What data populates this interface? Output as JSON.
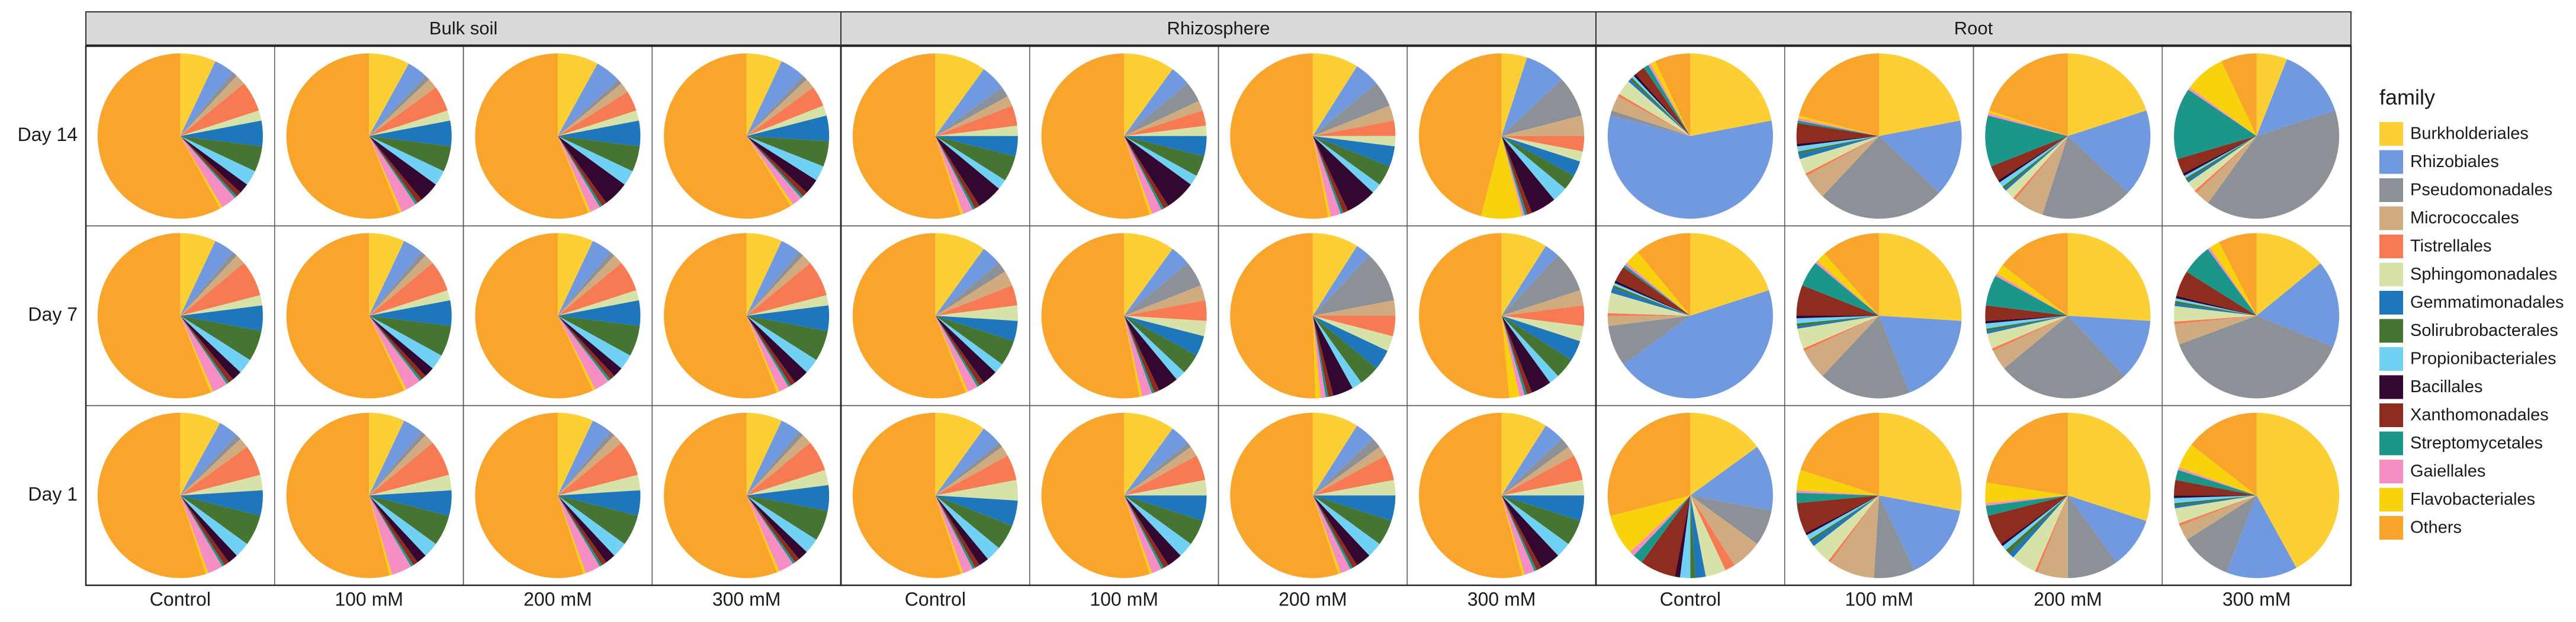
{
  "chart_data": {
    "type": "pie",
    "column_groups": [
      "Bulk soil",
      "Rhizosphere",
      "Root"
    ],
    "columns": [
      "Control",
      "100 mM",
      "200 mM",
      "300 mM"
    ],
    "rows": [
      "Day 14",
      "Day 7",
      "Day 1"
    ],
    "legend_title": "family",
    "families": [
      {
        "name": "Burkholderiales",
        "color": "#fcd034"
      },
      {
        "name": "Rhizobiales",
        "color": "#7199e0"
      },
      {
        "name": "Pseudomonadales",
        "color": "#8b9196"
      },
      {
        "name": "Micrococcales",
        "color": "#d1ab80"
      },
      {
        "name": "Tistrellales",
        "color": "#f87a52"
      },
      {
        "name": "Sphingomonadales",
        "color": "#d7e2a9"
      },
      {
        "name": "Gemmatimonadales",
        "color": "#1f77bb"
      },
      {
        "name": "Solirubrobacterales",
        "color": "#467533"
      },
      {
        "name": "Propionibacteriales",
        "color": "#70d1f5"
      },
      {
        "name": "Bacillales",
        "color": "#33072f"
      },
      {
        "name": "Xanthomonadales",
        "color": "#8e2d1f"
      },
      {
        "name": "Streptomycetales",
        "color": "#1b9688"
      },
      {
        "name": "Gaiellales",
        "color": "#f68ec4"
      },
      {
        "name": "Flavobacteriales",
        "color": "#f7d20d"
      },
      {
        "name": "Others",
        "color": "#f9a52b"
      }
    ],
    "values": [
      [
        [
          [
            7,
            4,
            1,
            2,
            6,
            2,
            5,
            5,
            3,
            2,
            1,
            0.5,
            3,
            0.5,
            58
          ],
          [
            8,
            4,
            1,
            2,
            5,
            2,
            5,
            5,
            3,
            4,
            1,
            0.5,
            3,
            0.5,
            56
          ],
          [
            8,
            5,
            1,
            2,
            4,
            2,
            5,
            5,
            3,
            5,
            1,
            0.5,
            2,
            0.5,
            56
          ],
          [
            7,
            5,
            1,
            2,
            4,
            2,
            5,
            5,
            3,
            3,
            1,
            0.5,
            2,
            0.5,
            59
          ]
        ],
        [
          [
            7,
            4,
            1,
            2,
            7,
            2,
            5,
            6,
            3,
            2,
            1,
            0.5,
            3,
            0.5,
            56
          ],
          [
            7,
            4,
            1,
            2,
            6,
            2,
            5,
            6,
            3,
            2,
            1,
            0.5,
            3,
            0.5,
            57
          ],
          [
            7,
            4,
            1,
            2,
            6,
            2,
            5,
            6,
            3,
            2,
            1,
            0.5,
            3,
            0.5,
            57
          ],
          [
            7,
            4,
            1,
            2,
            7,
            2,
            5,
            6,
            3,
            3,
            1,
            0.5,
            2,
            0.5,
            56
          ]
        ],
        [
          [
            8,
            4,
            1,
            2,
            6,
            3,
            5,
            6,
            3,
            2,
            1,
            0.5,
            3,
            0.5,
            55
          ],
          [
            7,
            4,
            1,
            2,
            7,
            3,
            5,
            6,
            3,
            2,
            1,
            0.5,
            4,
            0.5,
            54
          ],
          [
            7,
            4,
            1,
            2,
            7,
            3,
            5,
            6,
            3,
            2,
            1,
            0.5,
            3,
            0.5,
            55
          ],
          [
            7,
            4,
            1,
            2,
            6,
            3,
            5,
            6,
            3,
            2,
            1,
            0.5,
            3,
            0.5,
            56
          ]
        ]
      ],
      [
        [
          [
            10,
            5,
            2,
            2,
            4,
            2,
            4,
            5,
            2,
            5,
            1,
            0.5,
            2,
            0.5,
            55
          ],
          [
            10,
            4,
            4,
            2,
            3,
            2,
            4,
            4,
            2,
            6,
            1,
            0.5,
            2,
            0.5,
            55
          ],
          [
            9,
            5,
            5,
            3,
            3,
            2,
            4,
            4,
            2,
            6,
            1,
            0.5,
            2,
            0.5,
            53
          ],
          [
            5,
            8,
            8,
            4,
            3,
            2,
            3,
            3,
            3,
            5,
            1,
            0.5,
            0.5,
            8,
            46
          ]
        ],
        [
          [
            10,
            4,
            2,
            3,
            4,
            3,
            4,
            5,
            2,
            3,
            1,
            0.5,
            2,
            0.5,
            56
          ],
          [
            10,
            4,
            5,
            3,
            4,
            3,
            4,
            4,
            2,
            4,
            1,
            0.5,
            2,
            0.5,
            53
          ],
          [
            9,
            3,
            10,
            3,
            4,
            3,
            4,
            4,
            2,
            4,
            1,
            0.5,
            1,
            1,
            50.5
          ],
          [
            9,
            3,
            8,
            3,
            4,
            3,
            4,
            4,
            2,
            4,
            1,
            0.5,
            1,
            2,
            51.5
          ]
        ],
        [
          [
            10,
            4,
            1,
            2,
            5,
            4,
            5,
            5,
            3,
            2,
            1,
            0.5,
            2,
            0.5,
            55
          ],
          [
            10,
            4,
            1,
            2,
            5,
            3,
            5,
            5,
            3,
            3,
            1,
            0.5,
            2,
            0.5,
            55
          ],
          [
            9,
            4,
            2,
            2,
            5,
            3,
            5,
            5,
            3,
            3,
            1,
            0.5,
            2,
            0.5,
            55
          ],
          [
            9,
            4,
            2,
            2,
            5,
            3,
            5,
            5,
            3,
            4,
            1,
            0.5,
            2,
            0.5,
            54
          ]
        ]
      ],
      [
        [
          [
            22,
            57,
            1,
            3,
            0.5,
            3,
            0.5,
            0.5,
            0.5,
            0.5,
            2,
            1,
            0.5,
            1,
            7
          ],
          [
            22,
            15,
            25,
            5,
            0.5,
            3,
            1,
            0.5,
            1,
            0.5,
            4,
            0.5,
            0.5,
            0.5,
            21
          ],
          [
            20,
            17,
            18,
            6,
            0.5,
            2,
            0.5,
            0.5,
            1,
            0.5,
            3,
            10,
            0.5,
            0.5,
            20
          ],
          [
            6,
            14,
            40,
            3,
            0.5,
            2,
            0.5,
            0.5,
            0.5,
            0.5,
            3,
            14,
            0.5,
            8,
            7
          ]
        ],
        [
          [
            20,
            45,
            8,
            2,
            0.5,
            4,
            1,
            0.5,
            0.5,
            0.5,
            3,
            0.5,
            0.5,
            3,
            11
          ],
          [
            26,
            18,
            18,
            6,
            0.5,
            4,
            0.5,
            0.5,
            1,
            0.5,
            6,
            5,
            0.5,
            2,
            11.5
          ],
          [
            26,
            12,
            26,
            4,
            0.5,
            3,
            0.5,
            0.5,
            1,
            0.5,
            3,
            6,
            0.5,
            2,
            14.5
          ],
          [
            14,
            17,
            38,
            4,
            0.5,
            3,
            0.5,
            0.5,
            0.5,
            0.5,
            5,
            6,
            0.5,
            2,
            7.5
          ]
        ],
        [
          [
            15,
            13,
            7,
            6,
            2,
            4,
            2,
            1,
            2,
            1,
            7,
            2,
            1,
            8,
            29
          ],
          [
            28,
            15,
            8,
            9,
            0.5,
            4,
            1,
            0.5,
            1,
            0.5,
            6,
            2,
            0.5,
            4,
            20
          ],
          [
            30,
            10,
            10,
            6,
            0.5,
            5,
            1,
            1,
            1,
            0.5,
            6,
            2,
            0.5,
            4,
            22.5
          ],
          [
            42,
            14,
            10,
            3,
            0.5,
            3,
            0.5,
            0.5,
            1,
            0.5,
            3,
            2,
            0.5,
            5,
            14.5
          ]
        ]
      ]
    ]
  }
}
